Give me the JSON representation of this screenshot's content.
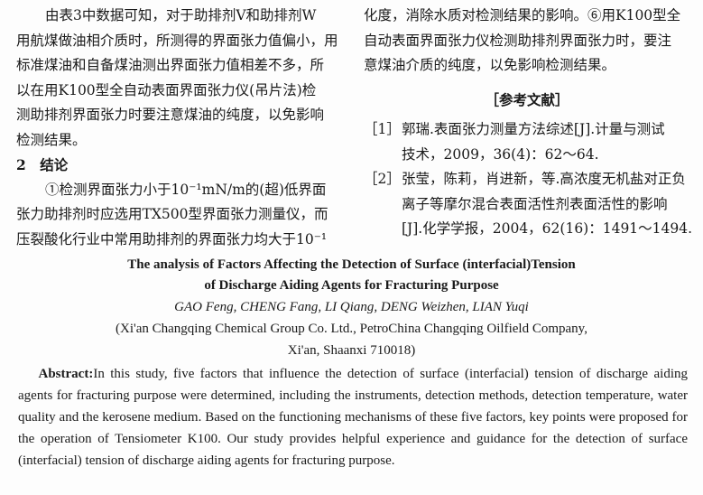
{
  "left_column": {
    "para1": [
      "由表3中数据可知，对于助排剂V和助排剂W",
      "用航煤做油相介质时，所测得的界面张力值偏小，用",
      "标准煤油和自备煤油测出界面张力值相差不多，所",
      "以在用K100型全自动表面界面张力仪(吊片法)检",
      "测助排剂界面张力时要注意煤油的纯度，以免影响",
      "检测结果。"
    ],
    "section_heading": "2　结论",
    "para2": [
      "①检测界面张力小于10⁻¹mN/m的(超)低界面",
      "张力助排剂时应选用TX500型界面张力测量仪，而",
      "压裂酸化行业中常用助排剂的界面张力均大于10⁻¹"
    ]
  },
  "right_column": {
    "para": [
      "化度，消除水质对检测结果的影响。⑥用K100型全",
      "自动表面界面张力仪检测助排剂界面张力时，要注",
      "意煤油介质的纯度，以免影响检测结果。"
    ],
    "references_heading": "［参考文献］",
    "references": [
      {
        "num": "［1］",
        "lines": [
          "郭瑞.表面张力测量方法综述[J].计量与测试",
          "技术，2009，36(4)：62～64."
        ]
      },
      {
        "num": "［2］",
        "lines": [
          "张莹，陈莉，肖进新，等.高浓度无机盐对正负",
          "离子等摩尔混合表面活性剂表面活性的影响",
          "[J].化学学报，2004，62(16)：1491～1494."
        ]
      }
    ]
  },
  "english": {
    "title": [
      "The analysis of Factors Affecting the Detection of Surface (interfacial)Tension",
      "of Discharge Aiding Agents for Fracturing Purpose"
    ],
    "authors": "GAO Feng, CHENG Fang, LI Qiang, DENG Weizhen, LIAN Yuqi",
    "affiliation": [
      "(Xi'an Changqing Chemical Group Co. Ltd., PetroChina Changqing Oilfield Company,",
      "Xi'an, Shaanxi 710018)"
    ],
    "abstract_label": "Abstract:",
    "abstract": "In this study, five factors that influence the detection of surface (interfacial) tension of discharge aiding agents for fracturing purpose were determined, including the instruments, detection methods, detection temperature, water quality and the kerosene medium. Based on the functioning mechanisms of these five factors, key points were proposed for the operation of Tensiometer K100. Our study provides helpful experience and guidance for the detection of surface (interfacial) tension of discharge aiding agents for fracturing purpose."
  }
}
